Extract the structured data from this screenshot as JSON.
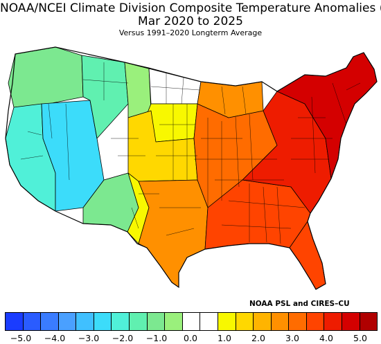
{
  "header": {
    "title_line1": "NOAA/NCEI Climate Division Composite Temperature Anomalies (F)",
    "title_line2": "Mar 2020 to 2025",
    "subtitle": "Versus 1991–2020 Longterm Average"
  },
  "credit": "NOAA PSL and CIRES–CU",
  "legend": {
    "colors": [
      "#1a3cff",
      "#2a5cff",
      "#3a7cff",
      "#4aa0ff",
      "#40c0ff",
      "#3cdcfa",
      "#50f0d8",
      "#60f0b0",
      "#7ce890",
      "#9af07c",
      "#ffffff",
      "#ffffff",
      "#f8f800",
      "#ffd800",
      "#ffb400",
      "#ff9000",
      "#ff6c00",
      "#ff4400",
      "#ee1c00",
      "#d40000",
      "#b00000"
    ],
    "tick_labels": [
      "−5.0",
      "−4.0",
      "−3.0",
      "−2.0",
      "−1.0",
      "0.0",
      "1.0",
      "2.0",
      "3.0",
      "4.0",
      "5.0"
    ]
  },
  "map_regions": [
    {
      "name": "pacific-northwest-region",
      "color": "#7ce890"
    },
    {
      "name": "california-coast-region",
      "color": "#50f0d8"
    },
    {
      "name": "great-basin-region",
      "color": "#3cdcfa"
    },
    {
      "name": "intermountain-region",
      "color": "#60f0b0"
    },
    {
      "name": "northern-rockies-region",
      "color": "#9af07c"
    },
    {
      "name": "southwest-region",
      "color": "#7ce890"
    },
    {
      "name": "northern-plains-region",
      "color": "#ffffff"
    },
    {
      "name": "dakotas-east-region",
      "color": "#f8f800"
    },
    {
      "name": "central-plains-region",
      "color": "#ffd800"
    },
    {
      "name": "west-texas-region",
      "color": "#f8f800"
    },
    {
      "name": "southern-plains-region",
      "color": "#ff9000"
    },
    {
      "name": "midwest-region",
      "color": "#ff6c00"
    },
    {
      "name": "southeast-region",
      "color": "#ff4400"
    },
    {
      "name": "appalachia-region",
      "color": "#ee1c00"
    },
    {
      "name": "northeast-region",
      "color": "#d40000"
    },
    {
      "name": "florida-region",
      "color": "#ff4400"
    },
    {
      "name": "upper-midwest-region",
      "color": "#ff9000"
    }
  ]
}
